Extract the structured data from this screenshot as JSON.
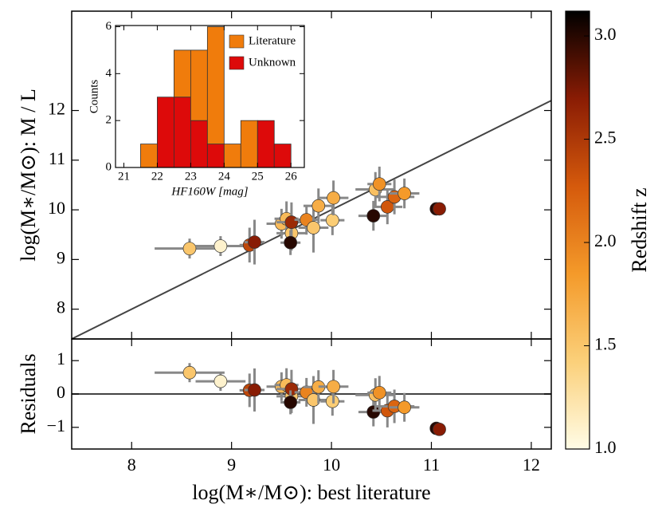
{
  "chart_data": [
    {
      "type": "scatter",
      "ylabel": "log(M∗/M⊙): M / L",
      "x": [
        8.58,
        8.89,
        9.18,
        9.23,
        9.5,
        9.55,
        9.6,
        9.6,
        9.59,
        9.75,
        9.82,
        9.87,
        10.01,
        10.02,
        10.42,
        10.44,
        10.48,
        10.56,
        10.63,
        10.73,
        11.05,
        11.08
      ],
      "values": [
        9.22,
        9.27,
        9.29,
        9.35,
        9.72,
        9.82,
        9.53,
        9.75,
        9.34,
        9.8,
        9.64,
        10.08,
        9.79,
        10.24,
        9.88,
        10.41,
        10.52,
        10.06,
        10.26,
        10.33,
        10.02,
        10.02
      ],
      "xerr": [
        0.35,
        0.25,
        0.1,
        0.1,
        0.15,
        0.12,
        0.15,
        0.15,
        0.1,
        0.12,
        0.15,
        0.15,
        0.12,
        0.15,
        0.15,
        0.2,
        0.12,
        0.15,
        0.2,
        0.15,
        0.05,
        0.05
      ],
      "yerr": [
        0.2,
        0.2,
        0.35,
        0.45,
        0.3,
        0.35,
        0.35,
        0.4,
        0.25,
        0.3,
        0.5,
        0.35,
        0.3,
        0.35,
        0.3,
        0.35,
        0.35,
        0.35,
        0.35,
        0.3,
        0.1,
        0.1
      ],
      "z": [
        1.5,
        1.1,
        2.4,
        2.7,
        1.6,
        1.6,
        1.5,
        2.6,
        3.0,
        2.0,
        1.5,
        1.7,
        1.45,
        1.7,
        3.0,
        1.55,
        1.9,
        2.3,
        2.2,
        1.85,
        3.0,
        2.7
      ],
      "xlim": [
        7.4,
        12.2
      ],
      "ylim": [
        7.4,
        14.0
      ],
      "yticks": [
        8,
        9,
        10,
        11,
        12
      ],
      "line_color": "#444444"
    },
    {
      "type": "scatter",
      "ylabel": "Residuals",
      "xlabel": "log(M∗/M⊙): best literature",
      "values": [
        0.64,
        0.38,
        0.11,
        0.12,
        0.22,
        0.27,
        -0.07,
        0.15,
        -0.25,
        0.05,
        -0.18,
        0.21,
        -0.22,
        0.22,
        -0.54,
        -0.03,
        0.04,
        -0.5,
        -0.37,
        -0.4,
        -1.03,
        -1.06
      ],
      "xticks": [
        8,
        9,
        10,
        11,
        12
      ],
      "ylim": [
        -1.65,
        1.65
      ],
      "yticks": [
        {
          "value": -1,
          "label": "−1"
        },
        0,
        1
      ]
    },
    {
      "type": "histogram",
      "xlabel": "HF160W [mag]",
      "ylabel": "Counts",
      "bins": [
        21.5,
        22,
        22.5,
        23,
        23.5,
        24,
        24.5,
        25,
        25.5,
        26
      ],
      "series": [
        {
          "name": "Literature",
          "color": "#f07c0c",
          "values": [
            1,
            0,
            2,
            3,
            5,
            1,
            2,
            0,
            0
          ]
        },
        {
          "name": "Unknown",
          "color": "#dd0a0a",
          "values": [
            0,
            3,
            3,
            2,
            1,
            0,
            0,
            2,
            1
          ]
        }
      ],
      "stacked": true,
      "legend": "upper right",
      "xlim": [
        20.75,
        26.4
      ],
      "xticks": [
        21,
        22,
        23,
        24,
        25,
        26
      ],
      "ylim": [
        0,
        6.05
      ],
      "yticks": [
        0,
        2,
        4,
        6
      ]
    },
    {
      "type": "colorbar",
      "label": "Redshift z",
      "colormap": [
        "#fffce6",
        "#fbd07a",
        "#f49a2a",
        "#d55a0c",
        "#8a1c04",
        "#000000"
      ],
      "zlim": [
        1.0,
        3.12
      ],
      "ticks": [
        {
          "value": 1,
          "label": "1.0"
        },
        1.5,
        {
          "value": 2,
          "label": "2.0"
        },
        2.5,
        {
          "value": 3,
          "label": "3.0"
        }
      ]
    }
  ]
}
